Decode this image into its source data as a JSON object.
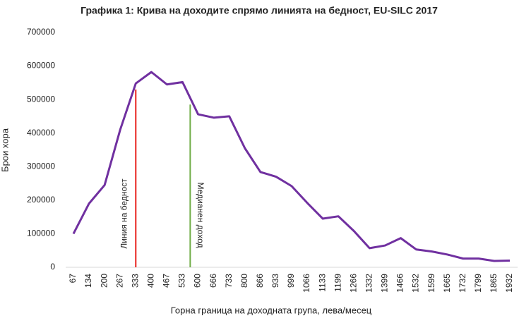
{
  "chart_data": {
    "type": "line",
    "title": "Графика 1: Крива на доходите спрямо линията на бедност, EU-SILC 2017",
    "x_label": "Горна граница на доходната група, лева/месец",
    "y_label": "Брои хора",
    "categories": [
      67,
      134,
      200,
      267,
      333,
      400,
      467,
      533,
      600,
      666,
      733,
      800,
      866,
      933,
      999,
      1066,
      1133,
      1199,
      1266,
      1332,
      1399,
      1466,
      1532,
      1599,
      1665,
      1732,
      1799,
      1865,
      1932
    ],
    "series": [
      {
        "color": "#7030a0",
        "values": [
          100000,
          190000,
          245000,
          410000,
          548000,
          582000,
          545000,
          552000,
          456000,
          446000,
          450000,
          355000,
          284000,
          270000,
          242000,
          192000,
          145000,
          152000,
          108000,
          57000,
          65000,
          87000,
          53000,
          47000,
          38000,
          26000,
          26000,
          19000,
          20000
        ]
      }
    ],
    "ylim": [
      0,
      700000
    ],
    "yticks": [
      0,
      100000,
      200000,
      300000,
      400000,
      500000,
      600000,
      700000
    ],
    "grid": false,
    "reference_lines": [
      {
        "label": "Линия на бедност",
        "x": 333,
        "y": 530000,
        "color": "#e8201c"
      },
      {
        "label": "Медианен доход",
        "x": 566,
        "y": 485000,
        "color": "#70ad47"
      }
    ]
  }
}
